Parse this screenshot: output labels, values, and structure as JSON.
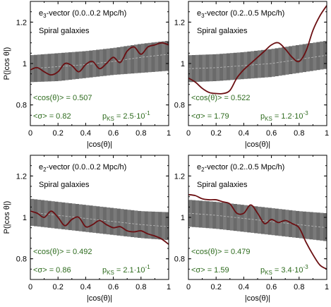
{
  "chart_data": [
    {
      "type": "line",
      "title_prefix": "e",
      "title_sub": "3",
      "title_rest": "-vector  (0.0..0.2 Mpc/h)",
      "subtitle": "Spiral galaxies",
      "xlabel": "|cos(θ)|",
      "ylabel": "P(|cos θ|)",
      "xlim": [
        0,
        1
      ],
      "ylim": [
        0.7,
        1.3
      ],
      "xticks": [
        "0",
        "0.2",
        "0.4",
        "0.6",
        "0.8",
        "1"
      ],
      "yticks": [
        "0.8",
        "1",
        "1.2"
      ],
      "stat_mean": "<cos(θ)> = 0.507",
      "stat_sigma": "<σ> = 0.82",
      "pks_base": "p",
      "pks_sub": "KS",
      "pks_eq": " = 2.5·10",
      "pks_exp": "-1",
      "band": {
        "x": [
          0,
          0.2,
          0.4,
          0.6,
          0.8,
          1
        ],
        "lower": [
          0.91,
          0.915,
          0.93,
          0.945,
          0.955,
          0.965
        ],
        "upper": [
          1.04,
          1.05,
          1.06,
          1.075,
          1.095,
          1.11
        ]
      },
      "fit": {
        "x": [
          0,
          0.2,
          0.4,
          0.6,
          0.8,
          1
        ],
        "y": [
          0.975,
          0.985,
          0.995,
          1.01,
          1.03,
          1.045
        ]
      },
      "curve": {
        "x": [
          0,
          0.05,
          0.1,
          0.15,
          0.2,
          0.25,
          0.3,
          0.35,
          0.4,
          0.45,
          0.5,
          0.55,
          0.6,
          0.65,
          0.7,
          0.75,
          0.8,
          0.85,
          0.9,
          0.95,
          1
        ],
        "y": [
          0.97,
          0.98,
          0.96,
          0.945,
          0.96,
          1.0,
          0.99,
          0.96,
          0.995,
          1.01,
          0.975,
          1.0,
          1.03,
          1.005,
          1.06,
          1.08,
          1.045,
          1.08,
          1.09,
          1.1,
          1.09
        ]
      },
      "colors": {
        "band": "#7a7a7a",
        "band_stripe": "#6a6a6a",
        "curve": "#6b0f12",
        "fit": "#b5b5b5"
      }
    },
    {
      "type": "line",
      "title_prefix": "e",
      "title_sub": "3",
      "title_rest": "-vector  (0.2..0.5 Mpc/h)",
      "subtitle": "Spiral galaxies",
      "xlabel": "|cos(θ)|",
      "ylabel": "",
      "xlim": [
        0,
        1
      ],
      "ylim": [
        0.7,
        1.3
      ],
      "xticks": [
        "0",
        "0.2",
        "0.4",
        "0.6",
        "0.8",
        "1"
      ],
      "yticks": [
        "0.8",
        "1",
        "1.2"
      ],
      "stat_mean": "<cos(θ)> = 0.522",
      "stat_sigma": "<σ> = 1.79",
      "pks_base": "p",
      "pks_sub": "KS",
      "pks_eq": " = 1.2·10",
      "pks_exp": "-3",
      "band": {
        "x": [
          0,
          0.2,
          0.4,
          0.6,
          0.8,
          1
        ],
        "lower": [
          0.91,
          0.915,
          0.925,
          0.935,
          0.955,
          0.975
        ],
        "upper": [
          1.04,
          1.045,
          1.055,
          1.07,
          1.09,
          1.11
        ]
      },
      "fit": {
        "x": [
          0,
          0.2,
          0.4,
          0.6,
          0.8,
          1
        ],
        "y": [
          0.975,
          0.98,
          0.99,
          1.0,
          1.02,
          1.04
        ]
      },
      "curve": {
        "x": [
          0,
          0.05,
          0.1,
          0.15,
          0.2,
          0.25,
          0.3,
          0.35,
          0.4,
          0.45,
          0.5,
          0.55,
          0.6,
          0.65,
          0.7,
          0.75,
          0.8,
          0.85,
          0.9,
          0.95,
          1
        ],
        "y": [
          0.93,
          0.91,
          0.88,
          0.86,
          0.855,
          0.855,
          0.87,
          0.93,
          0.97,
          1.0,
          1.03,
          1.06,
          1.09,
          1.1,
          1.07,
          1.03,
          1.01,
          1.06,
          1.16,
          1.23,
          1.28
        ]
      },
      "colors": {
        "band": "#7a7a7a",
        "band_stripe": "#6a6a6a",
        "curve": "#6b0f12",
        "fit": "#b5b5b5"
      }
    },
    {
      "type": "line",
      "title_prefix": "e",
      "title_sub": "2",
      "title_rest": "-vector  (0.0..0.2 Mpc/h)",
      "subtitle": "Spiral galaxies",
      "xlabel": "|cos(θ)|",
      "ylabel": "P(|cos θ|)",
      "xlim": [
        0,
        1
      ],
      "ylim": [
        0.7,
        1.3
      ],
      "xticks": [
        "0",
        "0.2",
        "0.4",
        "0.6",
        "0.8",
        "1"
      ],
      "yticks": [
        "0.8",
        "1",
        "1.2"
      ],
      "stat_mean": "<cos(θ)> = 0.492",
      "stat_sigma": "<σ> = 0.86",
      "pks_base": "p",
      "pks_sub": "KS",
      "pks_eq": " = 2.1·10",
      "pks_exp": "-1",
      "band": {
        "x": [
          0,
          0.2,
          0.4,
          0.6,
          0.8,
          1
        ],
        "lower": [
          0.96,
          0.945,
          0.93,
          0.915,
          0.9,
          0.89
        ],
        "upper": [
          1.09,
          1.075,
          1.06,
          1.045,
          1.03,
          1.025
        ]
      },
      "fit": {
        "x": [
          0,
          0.2,
          0.4,
          0.6,
          0.8,
          1
        ],
        "y": [
          1.025,
          1.01,
          0.995,
          0.98,
          0.965,
          0.955
        ]
      },
      "curve": {
        "x": [
          0,
          0.05,
          0.1,
          0.15,
          0.2,
          0.25,
          0.3,
          0.35,
          0.4,
          0.45,
          0.5,
          0.55,
          0.6,
          0.65,
          0.7,
          0.75,
          0.8,
          0.85,
          0.9,
          0.95,
          1
        ],
        "y": [
          1.03,
          1.02,
          1.0,
          1.03,
          1.0,
          0.96,
          0.99,
          1.0,
          0.955,
          0.965,
          0.985,
          0.965,
          0.95,
          0.955,
          0.935,
          0.93,
          0.935,
          0.92,
          0.91,
          0.895,
          0.87
        ]
      },
      "colors": {
        "band": "#7a7a7a",
        "band_stripe": "#6a6a6a",
        "curve": "#6b0f12",
        "fit": "#b5b5b5"
      }
    },
    {
      "type": "line",
      "title_prefix": "e",
      "title_sub": "2",
      "title_rest": "-vector  (0.2..0.5 Mpc/h)",
      "subtitle": "Spiral galaxies",
      "xlabel": "|cos(θ)|",
      "ylabel": "",
      "xlim": [
        0,
        1
      ],
      "ylim": [
        0.7,
        1.3
      ],
      "xticks": [
        "0",
        "0.2",
        "0.4",
        "0.6",
        "0.8",
        "1"
      ],
      "yticks": [
        "0.8",
        "1",
        "1.2"
      ],
      "stat_mean": "<cos(θ)> = 0.479",
      "stat_sigma": "<σ> = 1.59",
      "pks_base": "p",
      "pks_sub": "KS",
      "pks_eq": " = 3.4·10",
      "pks_exp": "-3",
      "band": {
        "x": [
          0,
          0.2,
          0.4,
          0.6,
          0.8,
          1
        ],
        "lower": [
          0.955,
          0.945,
          0.93,
          0.915,
          0.9,
          0.885
        ],
        "upper": [
          1.085,
          1.075,
          1.06,
          1.045,
          1.03,
          1.02
        ]
      },
      "fit": {
        "x": [
          0,
          0.2,
          0.4,
          0.6,
          0.8,
          1
        ],
        "y": [
          1.02,
          1.01,
          0.995,
          0.98,
          0.965,
          0.95
        ]
      },
      "curve": {
        "x": [
          0,
          0.05,
          0.1,
          0.15,
          0.2,
          0.25,
          0.3,
          0.35,
          0.4,
          0.45,
          0.5,
          0.55,
          0.6,
          0.65,
          0.7,
          0.75,
          0.8,
          0.85,
          0.9,
          0.95,
          1
        ],
        "y": [
          1.11,
          1.105,
          1.09,
          1.085,
          1.085,
          1.075,
          1.065,
          1.02,
          1.02,
          1.06,
          1.02,
          0.97,
          0.99,
          0.975,
          0.985,
          0.97,
          0.95,
          0.88,
          0.82,
          0.77,
          0.75
        ]
      },
      "colors": {
        "band": "#7a7a7a",
        "band_stripe": "#6a6a6a",
        "curve": "#6b0f12",
        "fit": "#b5b5b5"
      }
    }
  ]
}
